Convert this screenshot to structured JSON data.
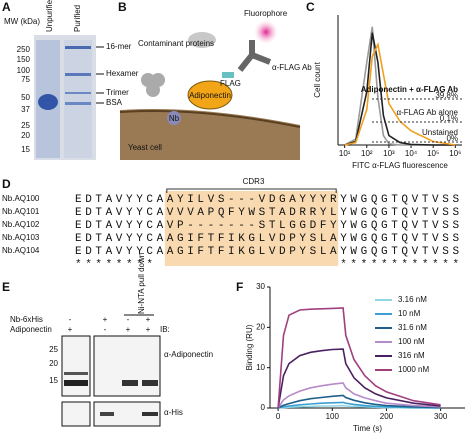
{
  "panel_a": {
    "label": "A",
    "axis_label": "MW (kDa)",
    "lanes": [
      "Unpurified",
      "Purified"
    ],
    "mw": [
      250,
      150,
      100,
      75,
      50,
      37,
      25,
      20,
      15
    ],
    "bands": [
      "16-mer",
      "Hexamer",
      "Trimer",
      "BSA"
    ]
  },
  "panel_b": {
    "label": "B",
    "contaminant": "Contaminant proteins",
    "fluorophore": "Fluorophore",
    "antibody": "α-FLAG Ab",
    "flag": "FLAG",
    "adiponectin": "Adiponectin",
    "nb": "Nb",
    "yeast": "Yeast cell"
  },
  "panel_c": {
    "label": "C",
    "chart_data": {
      "type": "line",
      "xlabel": "FITC α-FLAG fluorescence",
      "ylabel": "Cell count",
      "log_x": true,
      "x": [
        10,
        31.6,
        100,
        178,
        316,
        562,
        1000,
        3162,
        10000,
        100000,
        1000000
      ],
      "xlim": [
        5,
        2000000
      ],
      "ylim": [
        0,
        110
      ],
      "xticks": [
        {
          "value": 10,
          "label": "10¹"
        },
        {
          "value": 100,
          "label": "10²"
        },
        {
          "value": 1000,
          "label": "10³"
        },
        {
          "value": 10000,
          "label": "10⁴"
        },
        {
          "value": 100000,
          "label": "10⁵"
        },
        {
          "value": 1000000,
          "label": "10⁶"
        }
      ],
      "series": [
        {
          "name": "Unstained",
          "color": "#9a9a9a",
          "pct": "0%",
          "values": [
            0,
            5,
            70,
            100,
            40,
            8,
            1,
            0,
            0,
            0,
            0
          ]
        },
        {
          "name": "α-FLAG Ab alone",
          "color": "#222222",
          "pct": "0.1%",
          "values": [
            0,
            3,
            45,
            95,
            70,
            25,
            8,
            2,
            0.5,
            0,
            0
          ]
        },
        {
          "name": "Adiponectin + α-FLAG Ab",
          "color": "#f0a020",
          "pct": "39.8%",
          "values": [
            0,
            2,
            30,
            75,
            85,
            60,
            35,
            20,
            12,
            3,
            0
          ]
        }
      ]
    }
  },
  "panel_d": {
    "label": "D",
    "region": "CDR3",
    "rows": [
      {
        "name": "Nb.AQ100",
        "seq": "EDTAVYYCAAYILVS---VDGAYYYRYWGQGTQVTVSS"
      },
      {
        "name": "Nb.AQ101",
        "seq": "EDTAVYYCAVVVAPQFYWSTADRRYLYWGQGTQVTVSS"
      },
      {
        "name": "Nb.AQ102",
        "seq": "EDTAVYYCAVP-------STLGGDFYYWGQGTQVTVSS"
      },
      {
        "name": "Nb.AQ103",
        "seq": "EDTAVYYCAAGIFTFIKGLVDPYSLAYWGQGTQVTVSS"
      },
      {
        "name": "Nb.AQ104",
        "seq": "EDTAVYYCAAGIFTFIKGLVDPYSLAYWGQGTQVTVSS"
      }
    ],
    "conservation": "********                  ************"
  },
  "panel_e": {
    "label": "E",
    "rows": [
      {
        "name": "Nb-6xHis",
        "signs": [
          "-",
          "+",
          "-",
          "+"
        ]
      },
      {
        "name": "Adiponectin",
        "signs": [
          "+",
          "-",
          "+",
          "+"
        ]
      }
    ],
    "pulldown": "Ni-NTA pull down",
    "ib": "IB:",
    "mw": [
      25,
      20,
      15
    ],
    "blots": [
      "α-Adiponectin",
      "α-His"
    ]
  },
  "panel_f": {
    "label": "F",
    "chart_data": {
      "type": "line",
      "xlabel": "Time (s)",
      "ylabel": "Binding (RU)",
      "x": [
        0,
        10,
        20,
        40,
        60,
        80,
        100,
        120,
        125,
        140,
        160,
        180,
        200,
        250,
        300
      ],
      "xlim": [
        -15,
        345
      ],
      "ylim": [
        0,
        30
      ],
      "xticks": [
        0,
        100,
        200,
        300
      ],
      "yticks": [
        0,
        10,
        20,
        30
      ],
      "series": [
        {
          "name": "3.16 nM",
          "color": "#8fd6e6",
          "values": [
            0,
            0.1,
            0.2,
            0.3,
            0.4,
            0.5,
            0.5,
            0.6,
            0.5,
            0.4,
            0.3,
            0.2,
            0.1,
            0,
            0
          ]
        },
        {
          "name": "10 nM",
          "color": "#3a9fd0",
          "values": [
            0,
            0.3,
            0.5,
            0.8,
            1,
            1.2,
            1.3,
            1.4,
            1.2,
            0.9,
            0.6,
            0.4,
            0.3,
            0.1,
            0
          ]
        },
        {
          "name": "31.6 nM",
          "color": "#1f5f8a",
          "values": [
            0,
            0.7,
            1.1,
            1.8,
            2.3,
            2.6,
            2.9,
            3.1,
            2.6,
            1.9,
            1.3,
            0.9,
            0.6,
            0.3,
            0.1
          ]
        },
        {
          "name": "100 nM",
          "color": "#b78ac9",
          "values": [
            0,
            2,
            3,
            4.2,
            5,
            5.5,
            5.9,
            6.2,
            5,
            3.5,
            2.5,
            1.8,
            1.2,
            0.6,
            0.3
          ]
        },
        {
          "name": "316 nM",
          "color": "#4a2060",
          "values": [
            0,
            8,
            11,
            13,
            13.8,
            14.2,
            14.5,
            14.6,
            11,
            7.5,
            5,
            3.5,
            2.5,
            1.2,
            0.5
          ]
        },
        {
          "name": "1000 nM",
          "color": "#a0407f",
          "values": [
            0,
            18,
            23,
            24.3,
            24.5,
            24.6,
            24.7,
            24.8,
            18,
            12,
            8,
            5.5,
            4,
            1.8,
            0.8
          ]
        }
      ]
    }
  }
}
